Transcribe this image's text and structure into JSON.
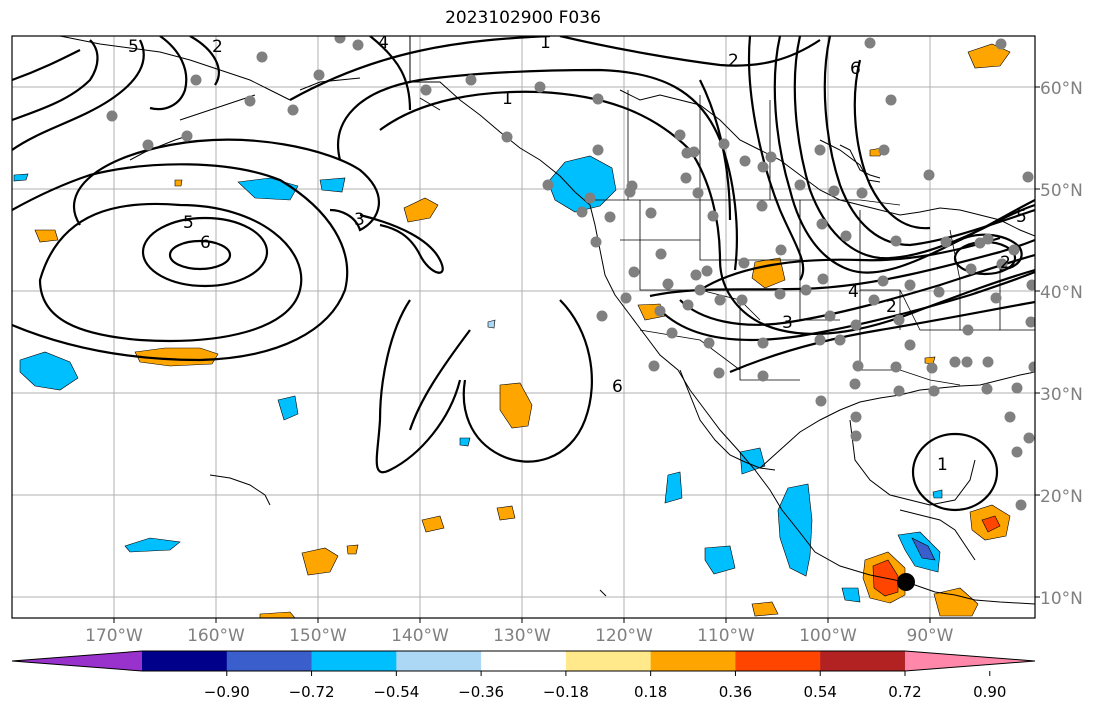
{
  "title": "2023102900 F036",
  "lat_labels": [
    "60°N",
    "50°N",
    "40°N",
    "30°N",
    "20°N",
    "10°N"
  ],
  "lon_labels": [
    "170°W",
    "160°W",
    "150°W",
    "140°W",
    "130°W",
    "120°W",
    "110°W",
    "100°W",
    "90°W"
  ],
  "colorbar": {
    "ticks": [
      "−0.90",
      "−0.72",
      "−0.54",
      "−0.36",
      "−0.18",
      "0.18",
      "0.36",
      "0.54",
      "0.72",
      "0.90"
    ],
    "colors": [
      "#9932cc",
      "#00008b",
      "#3a5fcd",
      "#00bfff",
      "#add8f5",
      "#ffffff",
      "#ffe98a",
      "#ffa500",
      "#ff4500",
      "#b22222",
      "#ff88aa"
    ]
  },
  "contour_labels": [
    "5",
    "6",
    "3",
    "1",
    "2",
    "6",
    "5",
    "4",
    "2",
    "3",
    "1",
    "6",
    "5",
    "2",
    "4",
    "1",
    "2"
  ],
  "colors": {
    "land_grid": "#b0b0b0",
    "station_marker": "#808080",
    "storm_marker": "#000000",
    "contour": "#000000"
  }
}
